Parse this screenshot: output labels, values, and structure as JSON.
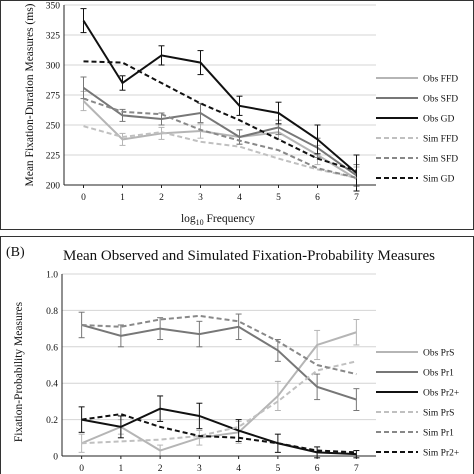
{
  "chart_data": [
    {
      "type": "line",
      "panel_label": "",
      "title": "",
      "xlabel_base": "log",
      "xlabel_sub": "10",
      "xlabel_rest": " Frequency",
      "ylabel": "Mean Fixation-Duration Measures (ms)",
      "x": [
        0,
        1,
        2,
        3,
        4,
        5,
        6,
        7
      ],
      "xtick_labels": [
        "0",
        "1",
        "2",
        "3",
        "4",
        "5",
        "6",
        "7"
      ],
      "ylim": [
        200,
        350
      ],
      "yticks": [
        200,
        225,
        250,
        275,
        300,
        325,
        350
      ],
      "legend_position": "right",
      "series": [
        {
          "name": "Obs FFD",
          "color": "#b5b5b5",
          "dash": "solid",
          "width": 2,
          "values": [
            270,
            238,
            243,
            245,
            240,
            244,
            225,
            205
          ],
          "errors": [
            8,
            5,
            5,
            6,
            6,
            6,
            8,
            10
          ]
        },
        {
          "name": "Obs SFD",
          "color": "#777777",
          "dash": "solid",
          "width": 2,
          "values": [
            281,
            258,
            255,
            260,
            240,
            248,
            231,
            208
          ],
          "errors": [
            9,
            5,
            5,
            8,
            6,
            6,
            8,
            9
          ]
        },
        {
          "name": "Obs GD",
          "color": "#111111",
          "dash": "solid",
          "width": 2,
          "values": [
            337,
            285,
            308,
            302,
            266,
            260,
            238,
            210
          ],
          "errors": [
            10,
            6,
            8,
            10,
            8,
            9,
            12,
            15
          ]
        },
        {
          "name": "Sim FFD",
          "color": "#c0c0c0",
          "dash": "dashed",
          "width": 2,
          "values": [
            249,
            240,
            244,
            236,
            232,
            222,
            213,
            206
          ]
        },
        {
          "name": "Sim SFD",
          "color": "#888888",
          "dash": "dashed",
          "width": 2,
          "values": [
            272,
            261,
            259,
            246,
            237,
            229,
            214,
            206
          ]
        },
        {
          "name": "Sim GD",
          "color": "#111111",
          "dash": "dashed",
          "width": 2,
          "values": [
            303,
            302,
            285,
            268,
            254,
            238,
            222,
            212
          ]
        }
      ]
    },
    {
      "type": "line",
      "panel_label": "(B)",
      "title": "Mean Observed and Simulated Fixation-Probability Measures",
      "ylabel": "Fixation-Probability Measures",
      "x": [
        0,
        1,
        2,
        3,
        4,
        5,
        6,
        7
      ],
      "xtick_labels": [
        "0",
        "1",
        "2",
        "3",
        "4",
        "5",
        "6",
        "7"
      ],
      "ylim": [
        0,
        1
      ],
      "yticks": [
        0,
        0.2,
        0.4,
        0.6,
        0.8,
        1
      ],
      "ytick_labels": [
        "0",
        "0.2",
        "0.4",
        "0.6",
        "0.8",
        "1.0"
      ],
      "legend_position": "right",
      "series": [
        {
          "name": "Obs PrS",
          "color": "#b5b5b5",
          "dash": "solid",
          "width": 2,
          "values": [
            0.07,
            0.16,
            0.03,
            0.1,
            0.13,
            0.33,
            0.61,
            0.68
          ],
          "errors": [
            0.05,
            0.04,
            0.03,
            0.04,
            0.06,
            0.08,
            0.08,
            0.07
          ]
        },
        {
          "name": "Obs Pr1",
          "color": "#777777",
          "dash": "solid",
          "width": 2,
          "values": [
            0.72,
            0.66,
            0.7,
            0.67,
            0.71,
            0.58,
            0.38,
            0.31
          ],
          "errors": [
            0.07,
            0.06,
            0.06,
            0.07,
            0.07,
            0.06,
            0.07,
            0.06
          ]
        },
        {
          "name": "Obs Pr2+",
          "color": "#111111",
          "dash": "solid",
          "width": 2,
          "values": [
            0.2,
            0.16,
            0.26,
            0.22,
            0.14,
            0.07,
            0.02,
            0.01
          ],
          "errors": [
            0.07,
            0.06,
            0.07,
            0.07,
            0.06,
            0.05,
            0.03,
            0.02
          ]
        },
        {
          "name": "Sim PrS",
          "color": "#c0c0c0",
          "dash": "dashed",
          "width": 2,
          "values": [
            0.07,
            0.08,
            0.09,
            0.11,
            0.16,
            0.3,
            0.47,
            0.52
          ]
        },
        {
          "name": "Sim Pr1",
          "color": "#888888",
          "dash": "dashed",
          "width": 2,
          "values": [
            0.72,
            0.71,
            0.75,
            0.77,
            0.74,
            0.63,
            0.5,
            0.45
          ]
        },
        {
          "name": "Sim Pr2+",
          "color": "#111111",
          "dash": "dashed",
          "width": 2,
          "values": [
            0.2,
            0.23,
            0.16,
            0.11,
            0.1,
            0.07,
            0.03,
            0.02
          ]
        }
      ]
    }
  ]
}
